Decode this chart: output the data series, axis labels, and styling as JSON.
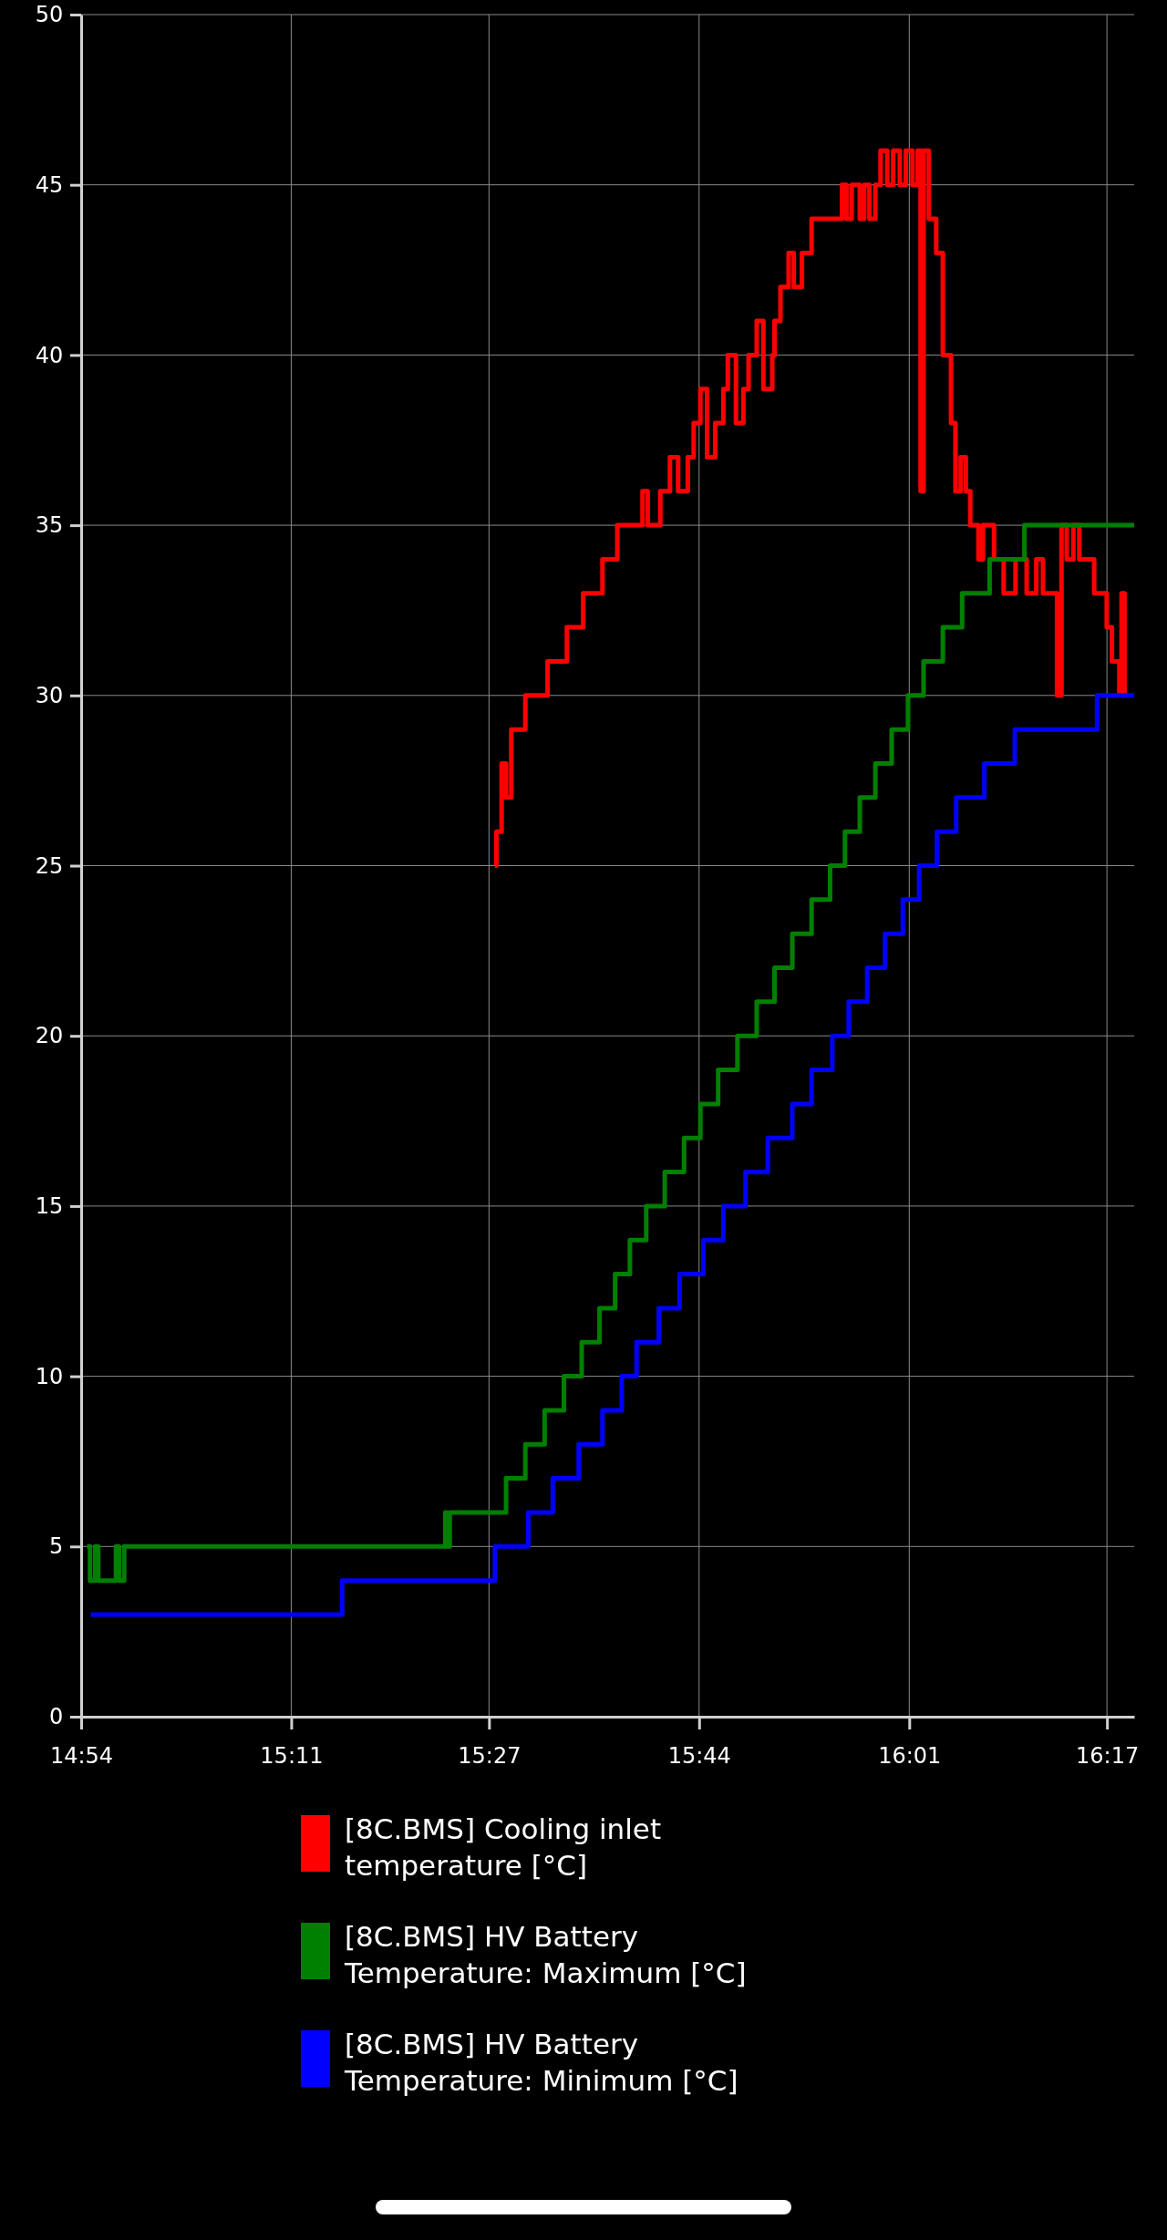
{
  "chart_data": {
    "type": "step",
    "xlim": [
      14.9,
      16.32
    ],
    "xticks": [
      {
        "value": 14.9,
        "label": "14:54"
      },
      {
        "value": 15.1833,
        "label": "15:11"
      },
      {
        "value": 15.45,
        "label": "15:27"
      },
      {
        "value": 15.7333,
        "label": "15:44"
      },
      {
        "value": 16.0167,
        "label": "16:01"
      },
      {
        "value": 16.2833,
        "label": "16:17"
      }
    ],
    "ylim": [
      0,
      50
    ],
    "yticks": [
      0,
      5,
      10,
      15,
      20,
      25,
      30,
      35,
      40,
      45,
      50
    ],
    "grid": true,
    "legend": "bottom",
    "series": [
      {
        "name": "[8C.BMS] Cooling inlet temperature [°C]",
        "color": "#ff0000",
        "x": [
          15.458,
          15.46,
          15.467,
          15.473,
          15.48,
          15.499,
          15.529,
          15.555,
          15.577,
          15.603,
          15.623,
          15.657,
          15.664,
          15.681,
          15.694,
          15.705,
          15.718,
          15.726,
          15.735,
          15.744,
          15.755,
          15.766,
          15.772,
          15.783,
          15.793,
          15.8,
          15.811,
          15.82,
          15.832,
          15.835,
          15.843,
          15.854,
          15.861,
          15.872,
          15.885,
          15.923,
          15.926,
          15.932,
          15.939,
          15.95,
          15.956,
          15.963,
          15.971,
          15.978,
          15.987,
          15.995,
          16.004,
          16.012,
          16.021,
          16.028,
          16.032,
          16.036,
          16.043,
          16.053,
          16.062,
          16.073,
          16.079,
          16.086,
          16.093,
          16.099,
          16.11,
          16.116,
          16.131,
          16.144,
          16.16,
          16.175,
          16.188,
          16.197,
          16.216,
          16.222,
          16.229,
          16.238,
          16.246,
          16.266,
          16.283,
          16.29,
          16.3,
          16.303,
          16.307
        ],
        "values": [
          25,
          26,
          28,
          27,
          29,
          30,
          31,
          32,
          33,
          34,
          35,
          36,
          35,
          36,
          37,
          36,
          37,
          38,
          39,
          37,
          38,
          39,
          40,
          38,
          39,
          40,
          41,
          39,
          40,
          41,
          42,
          43,
          42,
          43,
          44,
          44,
          45,
          44,
          45,
          44,
          45,
          44,
          45,
          46,
          45,
          46,
          45,
          46,
          45,
          46,
          36,
          46,
          44,
          43,
          40,
          38,
          36,
          37,
          36,
          35,
          34,
          35,
          34,
          33,
          34,
          33,
          34,
          33,
          30,
          35,
          34,
          35,
          34,
          33,
          32,
          31,
          30,
          33,
          30
        ]
      },
      {
        "name": "[8C.BMS] HV Battery Temperature: Maximum [°C]",
        "color": "#008000",
        "x": [
          14.908,
          14.912,
          14.919,
          14.923,
          14.947,
          14.951,
          14.958,
          15.391,
          15.393,
          15.397,
          15.473,
          15.499,
          15.525,
          15.551,
          15.575,
          15.599,
          15.62,
          15.64,
          15.662,
          15.687,
          15.713,
          15.735,
          15.759,
          15.785,
          15.811,
          15.835,
          15.859,
          15.885,
          15.91,
          15.93,
          15.95,
          15.971,
          15.993,
          16.015,
          16.036,
          16.062,
          16.088,
          16.125,
          16.172,
          16.32
        ],
        "values": [
          5,
          4,
          5,
          4,
          5,
          4,
          5,
          6,
          5,
          6,
          7,
          8,
          9,
          10,
          11,
          12,
          13,
          14,
          15,
          16,
          17,
          18,
          19,
          20,
          21,
          22,
          23,
          24,
          25,
          26,
          27,
          28,
          29,
          30,
          31,
          32,
          33,
          34,
          35,
          35
        ]
      },
      {
        "name": "[8C.BMS] HV Battery Temperature: Minimum [°C]",
        "color": "#0000ff",
        "x": [
          14.913,
          15.252,
          15.458,
          15.503,
          15.536,
          15.571,
          15.603,
          15.629,
          15.649,
          15.679,
          15.707,
          15.739,
          15.766,
          15.796,
          15.826,
          15.859,
          15.885,
          15.913,
          15.935,
          15.96,
          15.984,
          16.008,
          16.03,
          16.054,
          16.08,
          16.118,
          16.159,
          16.27,
          16.32
        ],
        "values": [
          3,
          4,
          5,
          6,
          7,
          8,
          9,
          10,
          11,
          12,
          13,
          14,
          15,
          16,
          17,
          18,
          19,
          20,
          21,
          22,
          23,
          24,
          25,
          26,
          27,
          28,
          29,
          30,
          30
        ]
      }
    ]
  }
}
